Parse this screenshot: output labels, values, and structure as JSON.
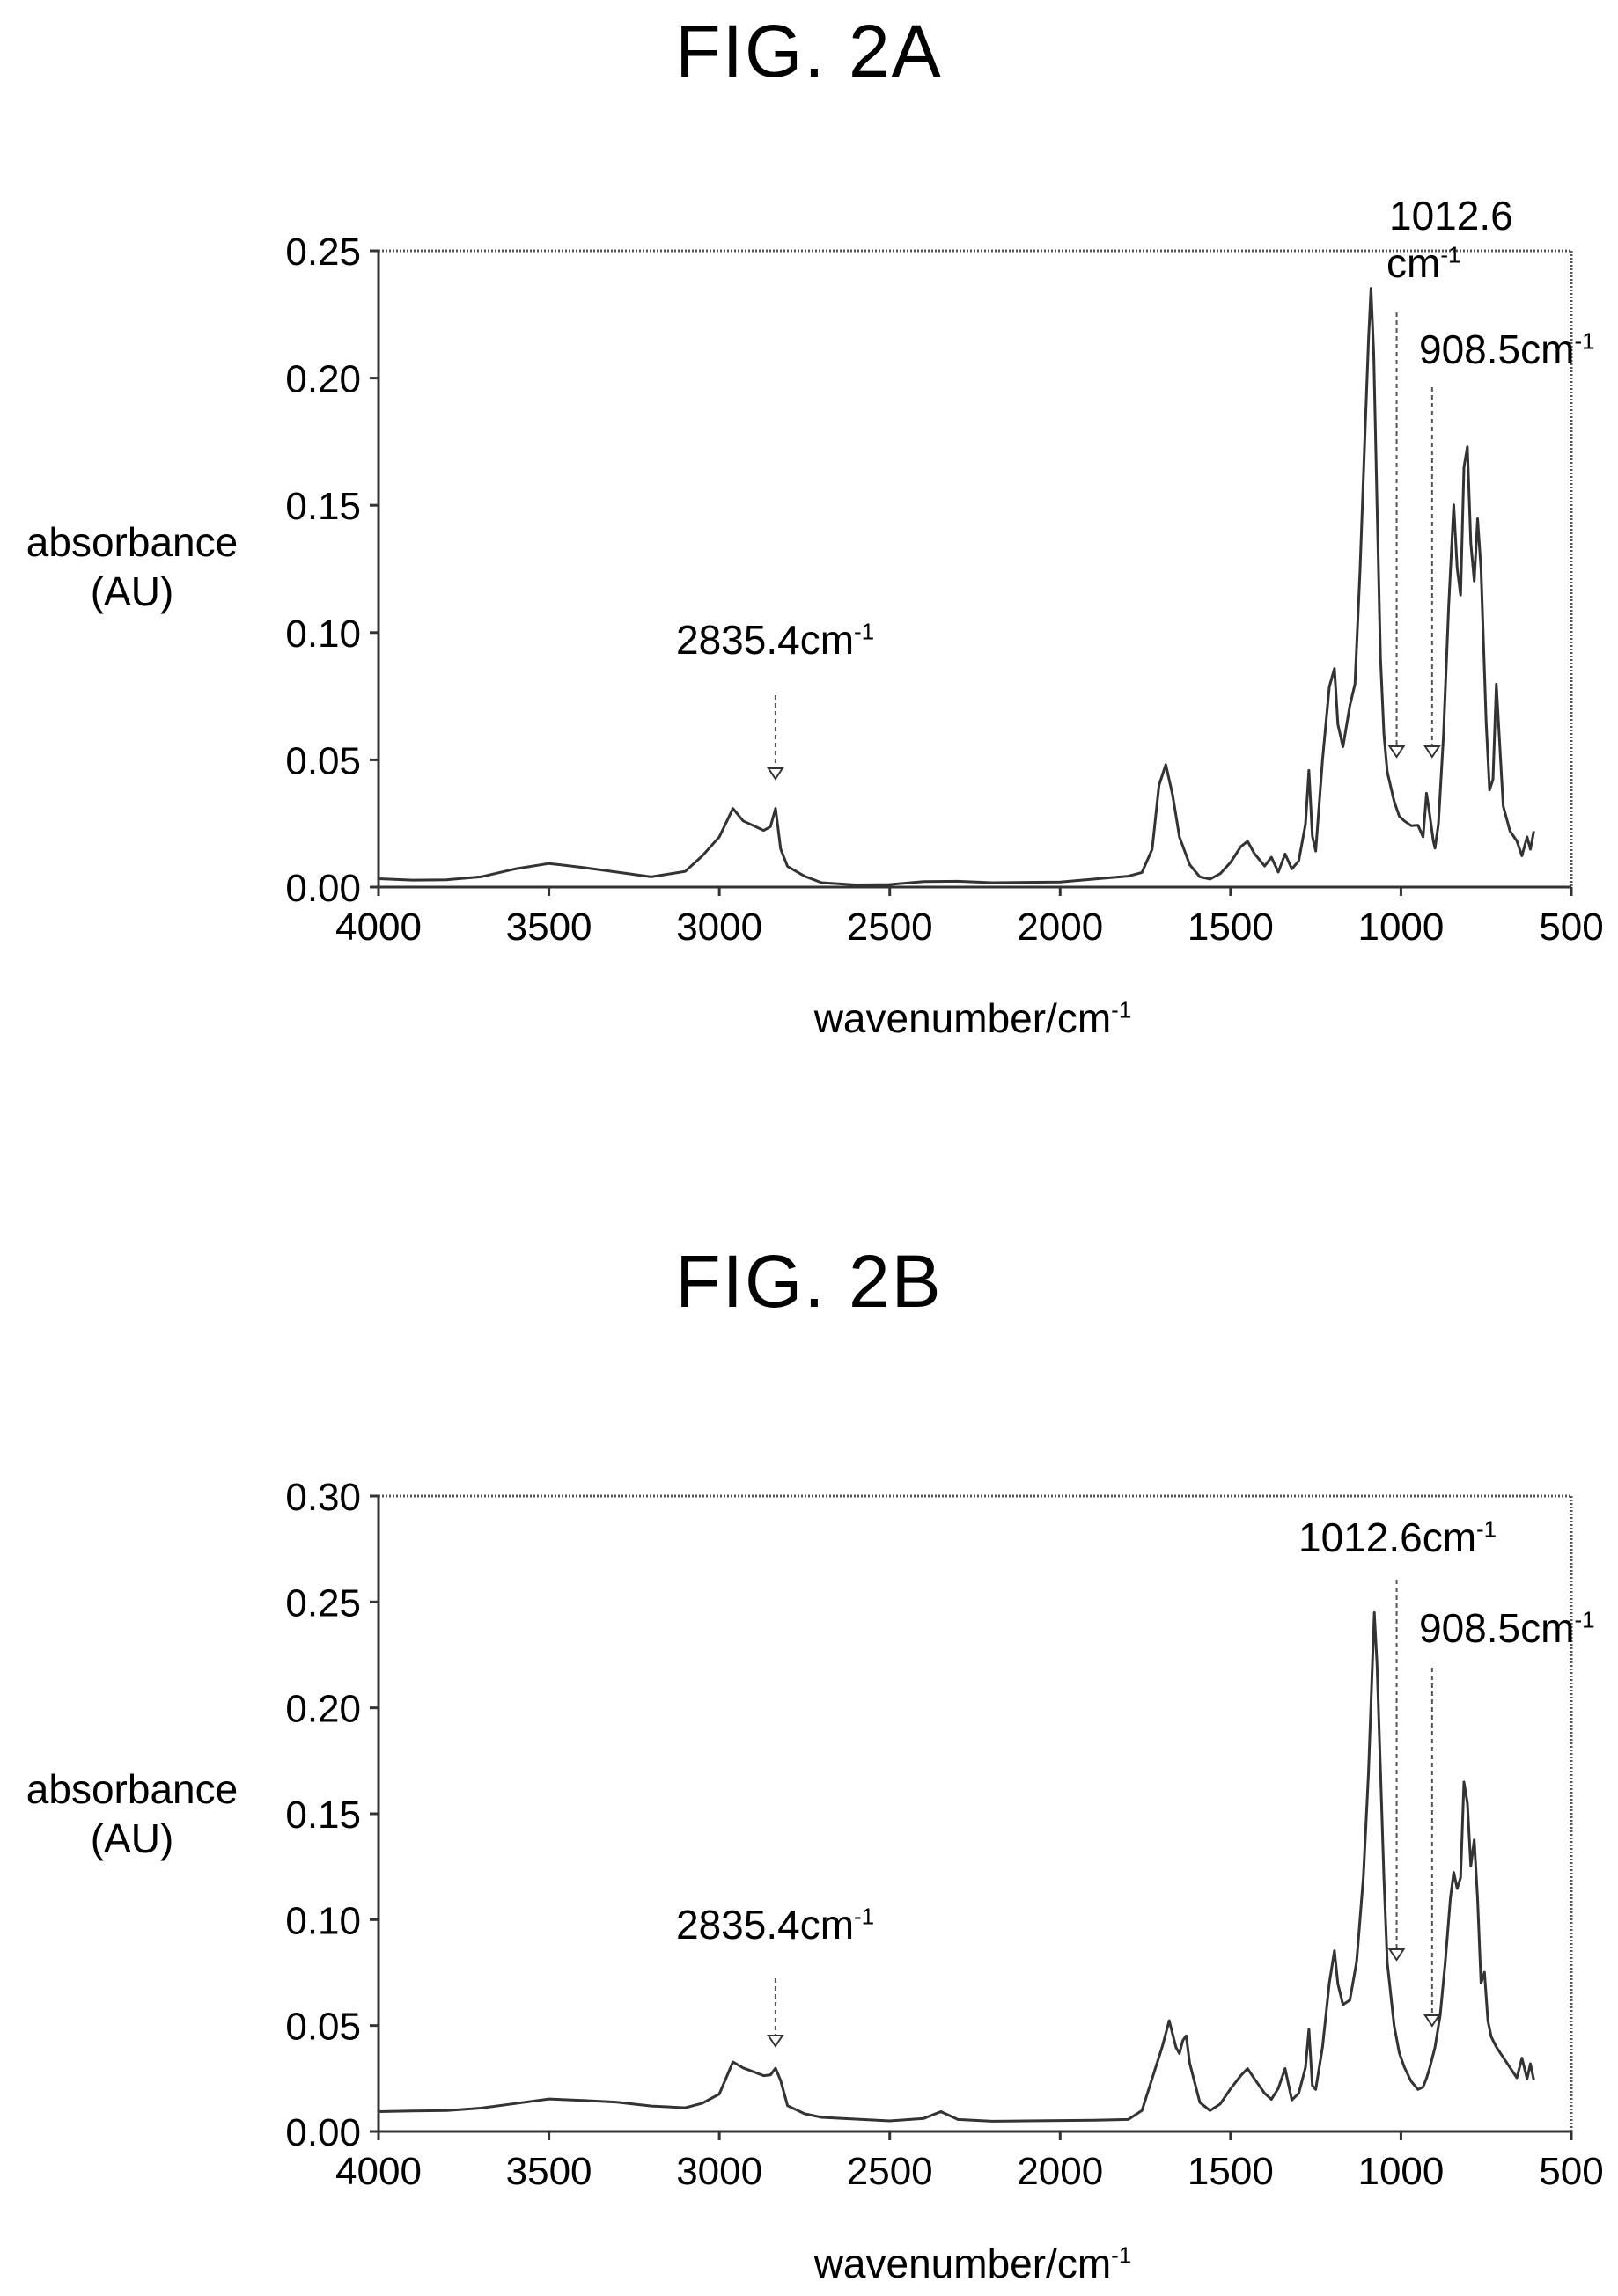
{
  "figures": {
    "a": {
      "title": "FIG. 2A",
      "ylabel_line1": "absorbance",
      "ylabel_line2": "(AU)",
      "xlabel_main": "wavenumber/cm",
      "xlabel_sup": "-1",
      "annotations": [
        {
          "id": "p2835",
          "text": "2835.4cm",
          "sup": "-1"
        },
        {
          "id": "p1012",
          "line1": "1012.6",
          "text": "cm",
          "sup": "-1"
        },
        {
          "id": "p908",
          "text": "908.5cm",
          "sup": "-1"
        }
      ]
    },
    "b": {
      "title": "FIG. 2B",
      "ylabel_line1": "absorbance",
      "ylabel_line2": "(AU)",
      "xlabel_main": "wavenumber/cm",
      "xlabel_sup": "-1",
      "annotations": [
        {
          "id": "p2835",
          "text": "2835.4cm",
          "sup": "-1"
        },
        {
          "id": "p1012",
          "text": "1012.6cm",
          "sup": "-1"
        },
        {
          "id": "p908",
          "text": "908.5cm",
          "sup": "-1"
        }
      ]
    }
  },
  "chart_data": [
    {
      "type": "line",
      "title": "FIG. 2A",
      "xlabel": "wavenumber/cm-1",
      "ylabel": "absorbance (AU)",
      "xlim": [
        4000,
        500
      ],
      "ylim": [
        0,
        0.25
      ],
      "xticks": [
        "4000",
        "3500",
        "3000",
        "2500",
        "2000",
        "1500",
        "1000",
        "500"
      ],
      "yticks": [
        "0.00",
        "0.05",
        "0.10",
        "0.15",
        "0.20",
        "0.25"
      ],
      "grid": false,
      "line_color": "#333333",
      "x": [
        4000,
        3900,
        3800,
        3700,
        3600,
        3500,
        3400,
        3300,
        3200,
        3100,
        3050,
        3000,
        2960,
        2930,
        2900,
        2870,
        2850,
        2835,
        2820,
        2800,
        2750,
        2700,
        2600,
        2500,
        2400,
        2300,
        2200,
        2100,
        2000,
        1900,
        1800,
        1760,
        1730,
        1710,
        1690,
        1670,
        1650,
        1620,
        1590,
        1560,
        1530,
        1500,
        1470,
        1450,
        1430,
        1400,
        1380,
        1360,
        1340,
        1320,
        1300,
        1280,
        1270,
        1260,
        1250,
        1230,
        1210,
        1195,
        1185,
        1170,
        1150,
        1135,
        1120,
        1105,
        1095,
        1088,
        1080,
        1070,
        1060,
        1050,
        1040,
        1020,
        1005,
        990,
        970,
        950,
        935,
        925,
        915,
        905,
        900,
        890,
        875,
        860,
        845,
        835,
        825,
        815,
        805,
        795,
        785,
        775,
        765,
        750,
        740,
        730,
        720,
        700,
        680,
        660,
        645,
        630,
        620,
        610
      ],
      "y": [
        0.003,
        0.003,
        0.003,
        0.004,
        0.007,
        0.009,
        0.008,
        0.006,
        0.004,
        0.006,
        0.012,
        0.02,
        0.031,
        0.026,
        0.024,
        0.022,
        0.024,
        0.031,
        0.015,
        0.008,
        0.004,
        0.002,
        0.001,
        0.001,
        0.002,
        0.002,
        0.002,
        0.002,
        0.002,
        0.003,
        0.004,
        0.006,
        0.015,
        0.04,
        0.048,
        0.036,
        0.02,
        0.009,
        0.004,
        0.003,
        0.005,
        0.01,
        0.016,
        0.018,
        0.013,
        0.008,
        0.012,
        0.006,
        0.013,
        0.007,
        0.01,
        0.025,
        0.046,
        0.02,
        0.014,
        0.05,
        0.079,
        0.086,
        0.064,
        0.055,
        0.071,
        0.08,
        0.125,
        0.18,
        0.215,
        0.235,
        0.21,
        0.15,
        0.09,
        0.06,
        0.045,
        0.034,
        0.028,
        0.026,
        0.024,
        0.024,
        0.02,
        0.037,
        0.028,
        0.018,
        0.015,
        0.025,
        0.06,
        0.11,
        0.15,
        0.125,
        0.115,
        0.165,
        0.173,
        0.135,
        0.12,
        0.145,
        0.125,
        0.065,
        0.038,
        0.042,
        0.08,
        0.032,
        0.022,
        0.018,
        0.012,
        0.02,
        0.015,
        0.022
      ]
    },
    {
      "type": "line",
      "title": "FIG. 2B",
      "xlabel": "wavenumber/cm-1",
      "ylabel": "absorbance (AU)",
      "xlim": [
        4000,
        500
      ],
      "ylim": [
        0,
        0.3
      ],
      "xticks": [
        "4000",
        "3500",
        "3000",
        "2500",
        "2000",
        "1500",
        "1000",
        "500"
      ],
      "yticks": [
        "0.00",
        "0.05",
        "0.10",
        "0.15",
        "0.20",
        "0.25",
        "0.30"
      ],
      "grid": false,
      "line_color": "#333333",
      "x": [
        4000,
        3900,
        3800,
        3700,
        3600,
        3500,
        3400,
        3300,
        3200,
        3100,
        3050,
        3000,
        2960,
        2930,
        2900,
        2870,
        2850,
        2835,
        2820,
        2800,
        2750,
        2700,
        2600,
        2500,
        2400,
        2350,
        2300,
        2200,
        2100,
        2000,
        1900,
        1800,
        1760,
        1730,
        1700,
        1680,
        1660,
        1650,
        1640,
        1630,
        1620,
        1590,
        1560,
        1530,
        1500,
        1470,
        1450,
        1430,
        1400,
        1380,
        1360,
        1340,
        1320,
        1300,
        1280,
        1270,
        1260,
        1250,
        1230,
        1210,
        1195,
        1185,
        1170,
        1150,
        1130,
        1110,
        1095,
        1085,
        1078,
        1070,
        1060,
        1050,
        1040,
        1020,
        1005,
        990,
        970,
        950,
        935,
        925,
        915,
        900,
        885,
        870,
        855,
        845,
        835,
        825,
        815,
        805,
        795,
        785,
        775,
        765,
        755,
        745,
        735,
        720,
        700,
        680,
        660,
        645,
        630,
        620,
        610
      ],
      "y": [
        0.009,
        0.01,
        0.01,
        0.011,
        0.013,
        0.015,
        0.015,
        0.014,
        0.012,
        0.011,
        0.013,
        0.018,
        0.033,
        0.03,
        0.028,
        0.026,
        0.027,
        0.03,
        0.024,
        0.012,
        0.008,
        0.007,
        0.006,
        0.005,
        0.006,
        0.009,
        0.006,
        0.005,
        0.005,
        0.005,
        0.005,
        0.006,
        0.01,
        0.025,
        0.04,
        0.052,
        0.04,
        0.037,
        0.043,
        0.045,
        0.032,
        0.014,
        0.01,
        0.013,
        0.02,
        0.026,
        0.03,
        0.025,
        0.018,
        0.015,
        0.02,
        0.03,
        0.015,
        0.018,
        0.03,
        0.048,
        0.022,
        0.02,
        0.04,
        0.07,
        0.085,
        0.07,
        0.06,
        0.062,
        0.08,
        0.12,
        0.17,
        0.215,
        0.245,
        0.22,
        0.17,
        0.12,
        0.08,
        0.05,
        0.037,
        0.03,
        0.024,
        0.02,
        0.021,
        0.025,
        0.03,
        0.04,
        0.055,
        0.08,
        0.11,
        0.122,
        0.115,
        0.12,
        0.165,
        0.155,
        0.125,
        0.138,
        0.11,
        0.07,
        0.075,
        0.052,
        0.045,
        0.04,
        0.035,
        0.03,
        0.025,
        0.035,
        0.025,
        0.032,
        0.024
      ]
    }
  ]
}
